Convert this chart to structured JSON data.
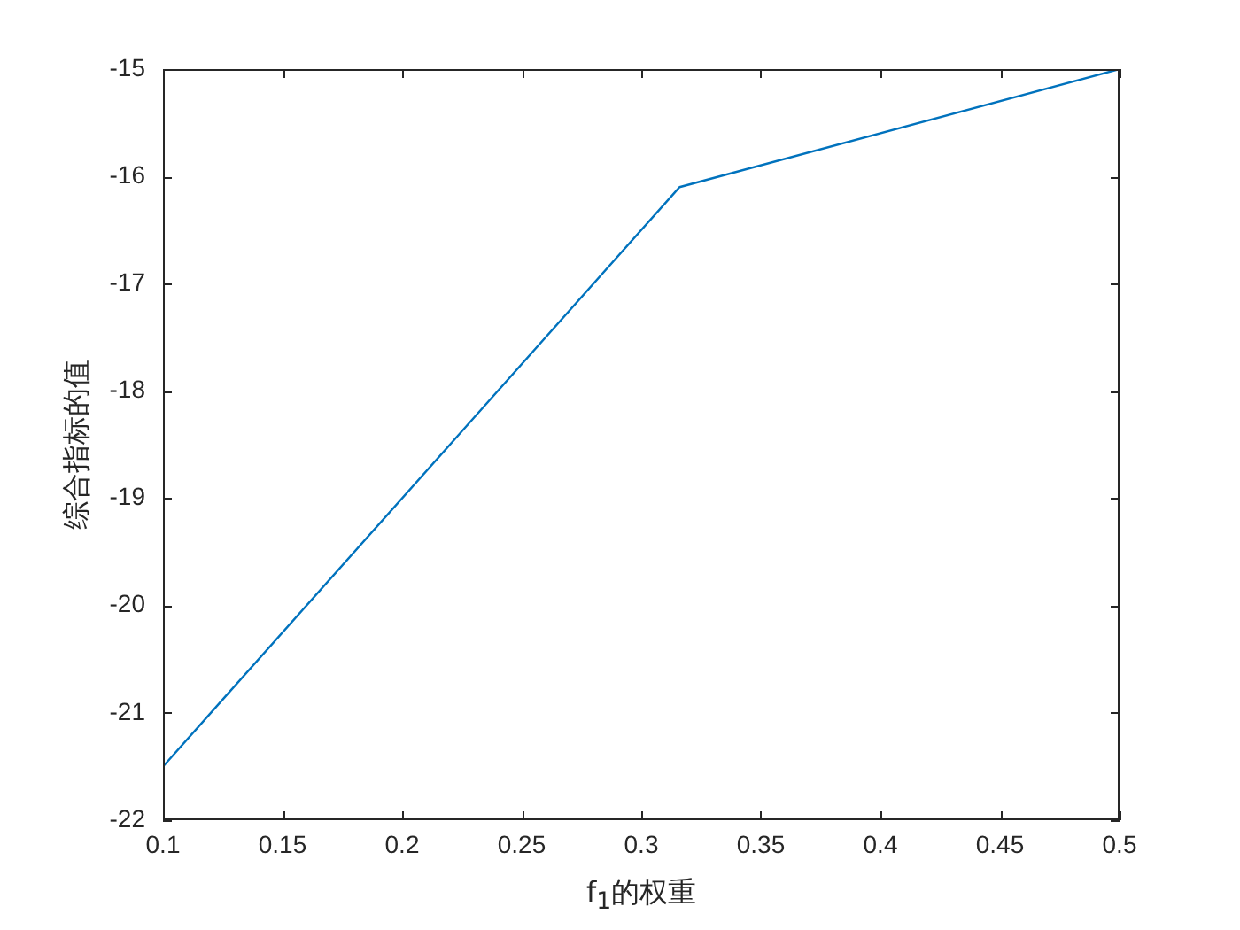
{
  "chart_data": {
    "type": "line",
    "xlabel": "f$_{1}$的权重",
    "ylabel": "综合指标的值",
    "x": [
      0.1,
      0.316,
      0.5
    ],
    "series": [
      {
        "color": "#0072bd",
        "values": [
          -21.5,
          -16.1,
          -15
        ]
      }
    ],
    "xlim": [
      0.1,
      0.5
    ],
    "xticks": [
      0.1,
      0.15,
      0.2,
      0.25,
      0.3,
      0.35,
      0.4,
      0.45,
      0.5
    ],
    "ylim": [
      -22,
      -15
    ],
    "yticks": [
      -22,
      -21,
      -20,
      -19,
      -18,
      -17,
      -16,
      -15
    ],
    "grid": false,
    "legend": false
  }
}
